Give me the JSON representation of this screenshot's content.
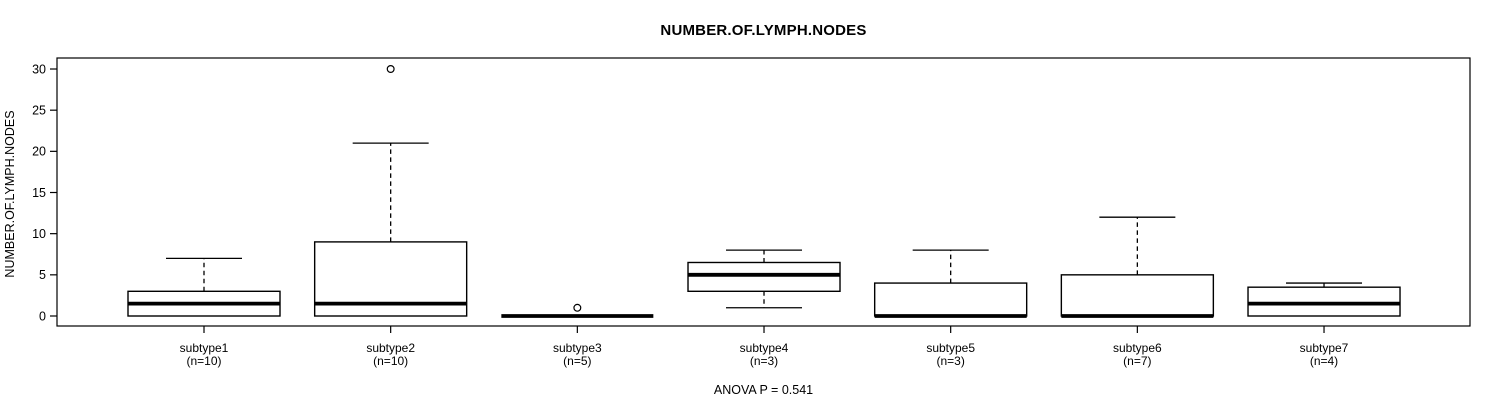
{
  "chart_data": {
    "type": "boxplot",
    "title": "NUMBER.OF.LYMPH.NODES",
    "ylabel": "NUMBER.OF.LYMPH.NODES",
    "footer": "ANOVA P = 0.541",
    "xlabel": "",
    "y_ticks": [
      0,
      5,
      10,
      15,
      20,
      25,
      30
    ],
    "ylim": [
      0,
      30
    ],
    "grid": false,
    "legend": "none",
    "colors": {
      "line": "#000000",
      "box_fill": "#ffffff",
      "background": "#ffffff"
    },
    "groups": [
      {
        "label": "subtype1",
        "sublabel": "(n=10)",
        "n": 10,
        "whisker_low": 0,
        "q1": 0,
        "median": 1.5,
        "q3": 3,
        "whisker_high": 7,
        "outliers": []
      },
      {
        "label": "subtype2",
        "sublabel": "(n=10)",
        "n": 10,
        "whisker_low": 0,
        "q1": 0,
        "median": 1.5,
        "q3": 9,
        "whisker_high": 21,
        "outliers": [
          30
        ]
      },
      {
        "label": "subtype3",
        "sublabel": "(n=5)",
        "n": 5,
        "whisker_low": 0,
        "q1": 0,
        "median": 0,
        "q3": 0,
        "whisker_high": 0,
        "outliers": [
          1
        ]
      },
      {
        "label": "subtype4",
        "sublabel": "(n=3)",
        "n": 3,
        "whisker_low": 1,
        "q1": 3,
        "median": 5,
        "q3": 6.5,
        "whisker_high": 8,
        "outliers": []
      },
      {
        "label": "subtype5",
        "sublabel": "(n=3)",
        "n": 3,
        "whisker_low": 0,
        "q1": 0,
        "median": 0,
        "q3": 4,
        "whisker_high": 8,
        "outliers": []
      },
      {
        "label": "subtype6",
        "sublabel": "(n=7)",
        "n": 7,
        "whisker_low": 0,
        "q1": 0,
        "median": 0,
        "q3": 5,
        "whisker_high": 12,
        "outliers": []
      },
      {
        "label": "subtype7",
        "sublabel": "(n=4)",
        "n": 4,
        "whisker_low": 0,
        "q1": 0,
        "median": 1.5,
        "q3": 3.5,
        "whisker_high": 4,
        "outliers": []
      }
    ]
  }
}
